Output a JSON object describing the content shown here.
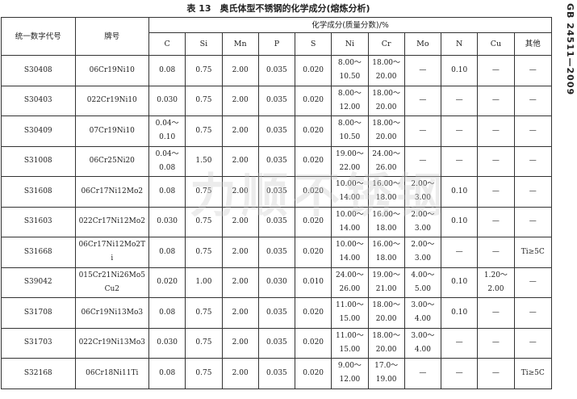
{
  "title": "表 13　奥氏体型不锈钢的化学成分(熔炼分析)",
  "standard": "GB 24511—2009",
  "watermark": "力顺不锈钢 Lsss.com.cn",
  "headers": {
    "code": "统一数字代号",
    "grade": "牌号",
    "composition": "化学成分(质量分数)/%",
    "elements": [
      "C",
      "Si",
      "Mn",
      "P",
      "S",
      "Ni",
      "Cr",
      "Mo",
      "N",
      "Cu",
      "其他"
    ]
  },
  "rows": [
    [
      "S30408",
      "06Cr19Ni10",
      "0.08",
      "0.75",
      "2.00",
      "0.035",
      "0.020",
      "8.00～10.50",
      "18.00～20.00",
      "—",
      "0.10",
      "—",
      "—"
    ],
    [
      "S30403",
      "022Cr19Ni10",
      "0.030",
      "0.75",
      "2.00",
      "0.035",
      "0.020",
      "8.00～12.00",
      "18.00～20.00",
      "—",
      "—",
      "—",
      "—"
    ],
    [
      "S30409",
      "07Cr19Ni10",
      "0.04～0.10",
      "0.75",
      "2.00",
      "0.035",
      "0.020",
      "8.00～10.50",
      "18.00～20.00",
      "—",
      "—",
      "—",
      "—"
    ],
    [
      "S31008",
      "06Cr25Ni20",
      "0.04～0.08",
      "1.50",
      "2.00",
      "0.035",
      "0.020",
      "19.00～22.00",
      "24.00～26.00",
      "—",
      "—",
      "—",
      "—"
    ],
    [
      "S31608",
      "06Cr17Ni12Mo2",
      "0.08",
      "0.75",
      "2.00",
      "0.035",
      "0.020",
      "10.00～14.00",
      "16.00～18.00",
      "2.00～3.00",
      "0.10",
      "—",
      "—"
    ],
    [
      "S31603",
      "022Cr17Ni12Mo2",
      "0.030",
      "0.75",
      "2.00",
      "0.035",
      "0.020",
      "10.00～14.00",
      "16.00～18.00",
      "2.00～3.00",
      "0.10",
      "—",
      "—"
    ],
    [
      "S31668",
      "06Cr17Ni12Mo2Ti",
      "0.08",
      "0.75",
      "2.00",
      "0.035",
      "0.020",
      "10.00～14.00",
      "16.00～18.00",
      "2.00～3.00",
      "—",
      "—",
      "Ti≥5C"
    ],
    [
      "S39042",
      "015Cr21Ni26Mo5Cu2",
      "0.020",
      "1.00",
      "2.00",
      "0.030",
      "0.010",
      "24.00～26.00",
      "19.00～21.00",
      "4.00～5.00",
      "0.10",
      "1.20～2.00",
      "—"
    ],
    [
      "S31708",
      "06Cr19Ni13Mo3",
      "0.08",
      "0.75",
      "2.00",
      "0.035",
      "0.020",
      "11.00～15.00",
      "18.00～20.00",
      "3.00～4.00",
      "0.10",
      "—",
      "—"
    ],
    [
      "S31703",
      "022Cr19Ni13Mo3",
      "0.030",
      "0.75",
      "2.00",
      "0.035",
      "0.020",
      "11.00～15.00",
      "18.00～20.00",
      "3.00～4.00",
      "—",
      "—",
      "—"
    ],
    [
      "S32168",
      "06Cr18Ni11Ti",
      "0.08",
      "0.75",
      "2.00",
      "0.035",
      "0.020",
      "9.00～12.00",
      "17.0～19.00",
      "—",
      "—",
      "—",
      "Ti≥5C"
    ]
  ]
}
